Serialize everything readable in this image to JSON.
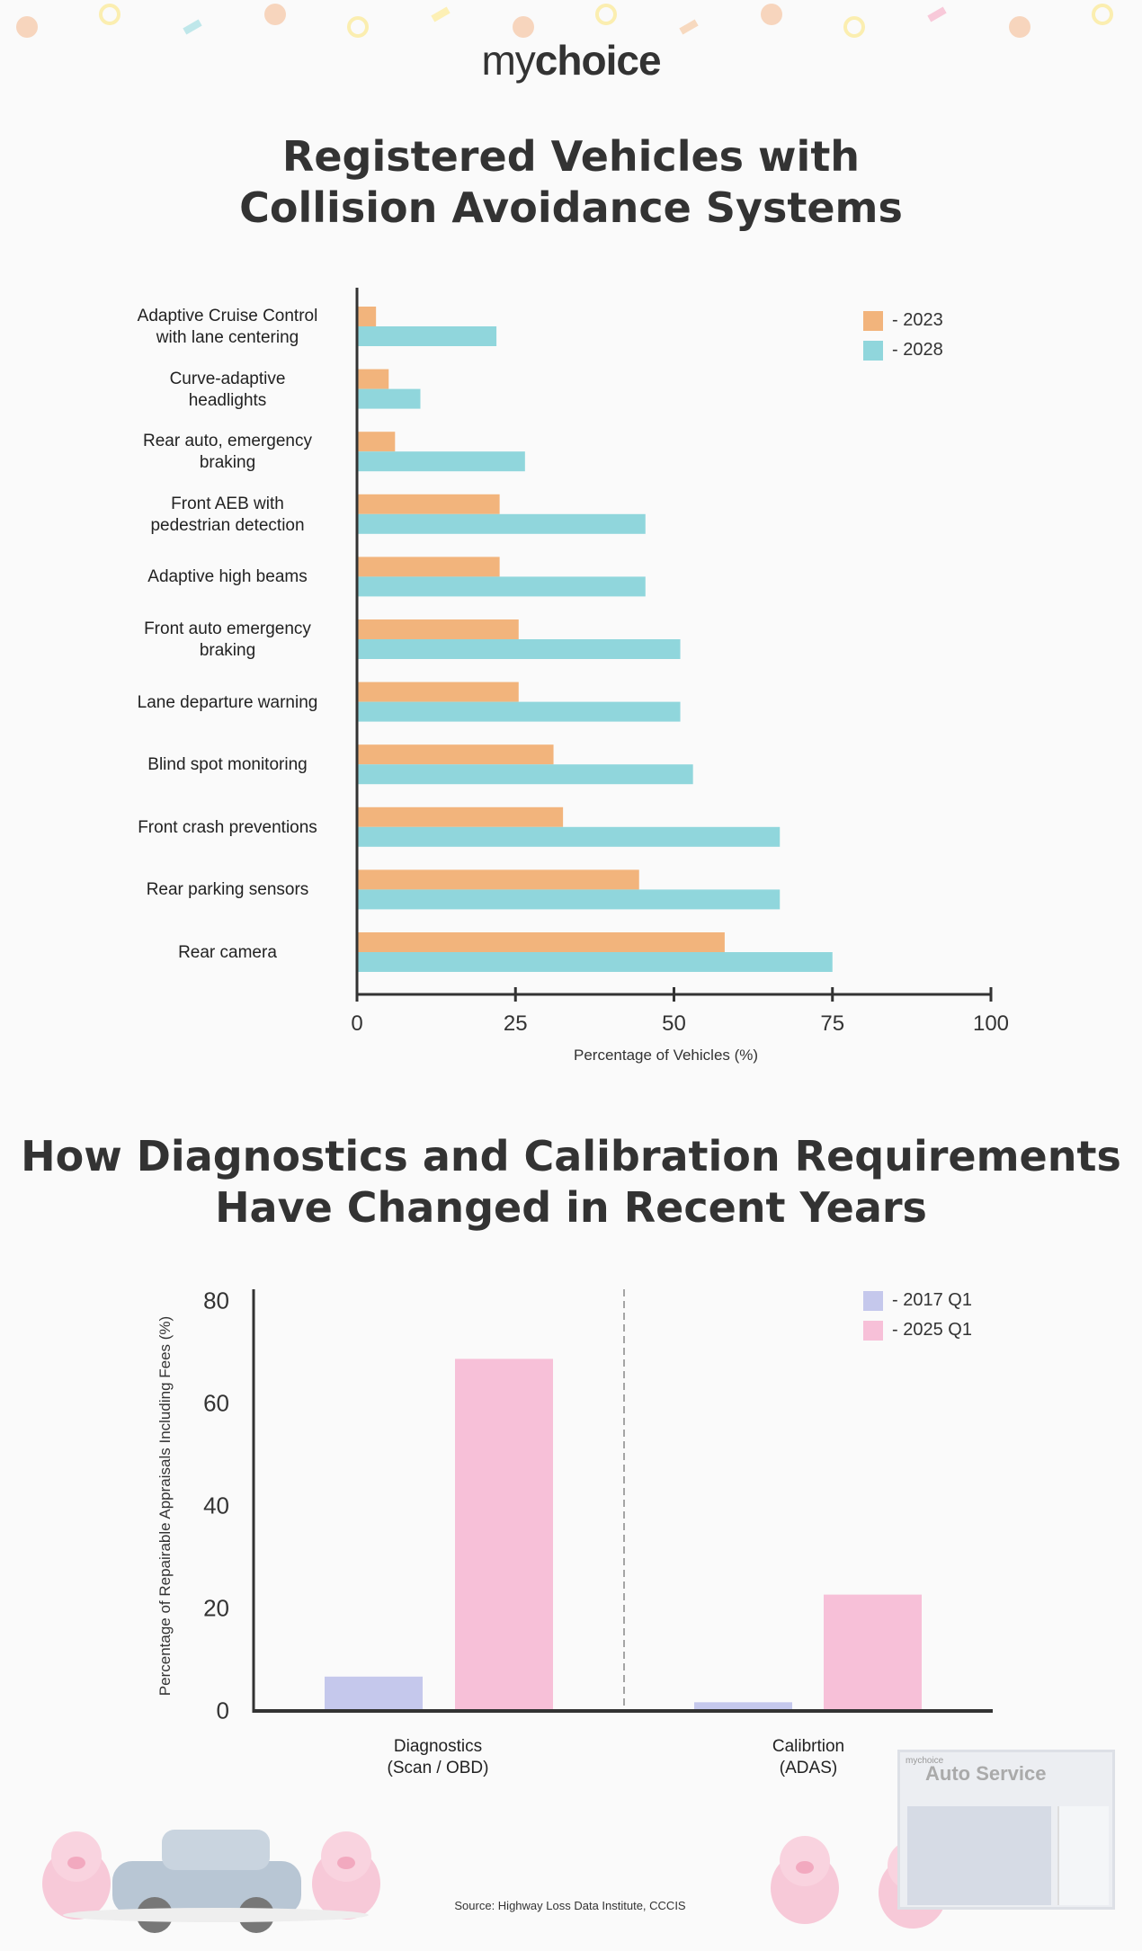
{
  "brand": {
    "logo_prefix": "my",
    "logo_suffix": "choice",
    "auto_service_sign": "Auto Service",
    "sign_brand": "mychoice"
  },
  "chart_data": [
    {
      "type": "bar",
      "orientation": "horizontal",
      "title": "Registered Vehicles with\nCollision Avoidance Systems",
      "xlabel": "Percentage of Vehicles (%)",
      "ylabel": "",
      "xlim": [
        0,
        100
      ],
      "xticks": [
        "0",
        "25",
        "50",
        "75",
        "100"
      ],
      "grid": false,
      "legend_position": "top-right",
      "categories": [
        "Adaptive Cruise Control\nwith  lane centering",
        "Curve-adaptive\nheadlights",
        "Rear auto, emergency\nbraking",
        "Front AEB with\npedestrian detection",
        "Adaptive high beams",
        "Front auto emergency\nbraking",
        "Lane departure warning",
        "Blind spot monitoring",
        "Front crash preventions",
        "Rear parking sensors",
        "Rear camera"
      ],
      "series": [
        {
          "name": "- 2023",
          "color": "#f2b47c",
          "values": [
            3,
            5,
            6,
            22.5,
            22.5,
            25.5,
            25.5,
            31,
            32.5,
            44.5,
            58
          ]
        },
        {
          "name": "- 2028",
          "color": "#90d6dc",
          "values": [
            22,
            10,
            26.5,
            45.5,
            45.5,
            51,
            51,
            53,
            66.7,
            66.7,
            75
          ]
        }
      ]
    },
    {
      "type": "bar",
      "orientation": "vertical",
      "title": "How Diagnostics and Calibration Requirements\nHave Changed in Recent Years",
      "xlabel": "",
      "ylabel": "Percentage of Repairable Appraisals Including Fees (%)",
      "ylim": [
        0,
        80
      ],
      "yticks": [
        "0",
        "20",
        "40",
        "60",
        "80"
      ],
      "grid": false,
      "legend_position": "top-right",
      "categories": [
        "Diagnostics\n(Scan / OBD)",
        "Calibrtion\n(ADAS)"
      ],
      "series": [
        {
          "name": "- 2017 Q1",
          "color": "#c5c8ec",
          "values": [
            6.7,
            1.7
          ]
        },
        {
          "name": "- 2025 Q1",
          "color": "#f7c0d8",
          "values": [
            68.7,
            22.7
          ]
        }
      ]
    }
  ],
  "source": "Source: Highway Loss Data Institute, CCCIS"
}
